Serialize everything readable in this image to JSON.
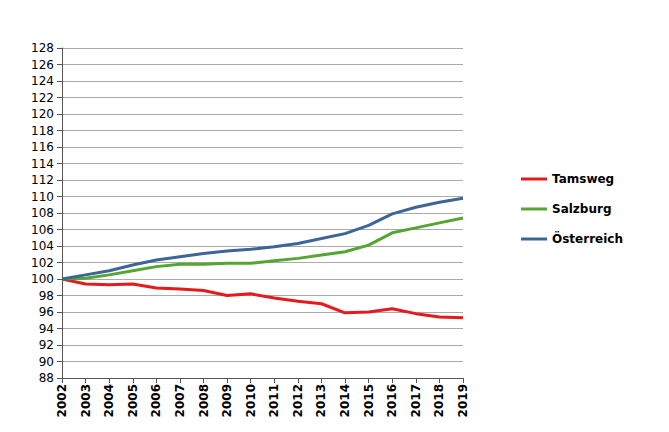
{
  "chart_data": {
    "type": "line",
    "categories": [
      "2002",
      "2003",
      "2004",
      "2005",
      "2006",
      "2007",
      "2008",
      "2009",
      "2010",
      "2011",
      "2012",
      "2013",
      "2014",
      "2015",
      "2016",
      "2017",
      "2018",
      "2019"
    ],
    "series": [
      {
        "name": "Tamsweg",
        "color": "#e41a1c",
        "values": [
          100,
          99.4,
          99.3,
          99.4,
          98.9,
          98.8,
          98.6,
          98.0,
          98.2,
          97.7,
          97.3,
          97.0,
          95.9,
          96.0,
          96.4,
          95.8,
          95.4,
          95.3
        ]
      },
      {
        "name": "Salzburg",
        "color": "#55a532",
        "values": [
          100,
          100.1,
          100.5,
          101.0,
          101.5,
          101.8,
          101.8,
          101.9,
          101.9,
          102.2,
          102.5,
          102.9,
          103.3,
          104.1,
          105.6,
          106.2,
          106.8,
          107.4
        ]
      },
      {
        "name": "Österreich",
        "color": "#3d6597",
        "values": [
          100,
          100.5,
          101.0,
          101.7,
          102.3,
          102.7,
          103.1,
          103.4,
          103.6,
          103.9,
          104.3,
          104.9,
          105.5,
          106.5,
          107.9,
          108.7,
          109.3,
          109.8
        ]
      }
    ],
    "ylim": [
      88,
      128
    ],
    "yticks": [
      88,
      90,
      92,
      94,
      96,
      98,
      100,
      102,
      104,
      106,
      108,
      110,
      112,
      114,
      116,
      118,
      120,
      122,
      124,
      126,
      128
    ],
    "grid": true,
    "legend": "right",
    "marker": "none"
  }
}
